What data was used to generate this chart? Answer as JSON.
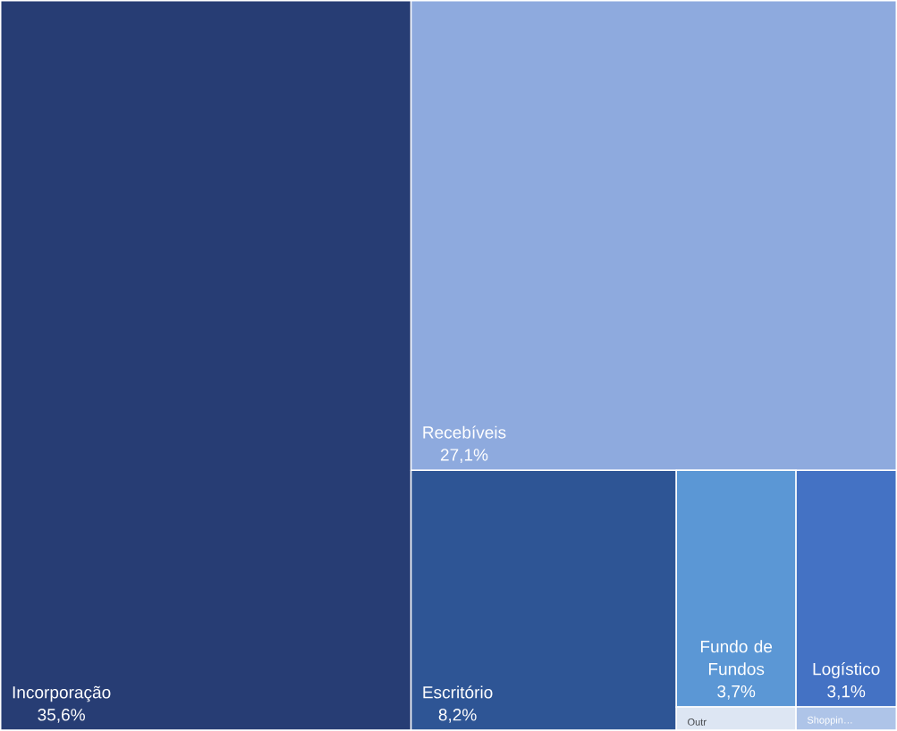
{
  "chart_data": {
    "type": "other",
    "categories": [
      "Incorporação",
      "Recebíveis",
      "Escritório",
      "Fundo de Fundos",
      "Logístico",
      "Outr",
      "Shoppin…"
    ],
    "values": [
      35.6,
      27.1,
      8.2,
      3.7,
      3.1,
      null,
      null
    ],
    "value_labels": [
      "35,6%",
      "27,1%",
      "8,2%",
      "3,7%",
      "3,1%",
      null,
      null
    ],
    "colors": [
      "#273d74",
      "#8eaade",
      "#2e5595",
      "#5b97d5",
      "#4472c4",
      "#dde6f3",
      "#aec4e8"
    ]
  }
}
